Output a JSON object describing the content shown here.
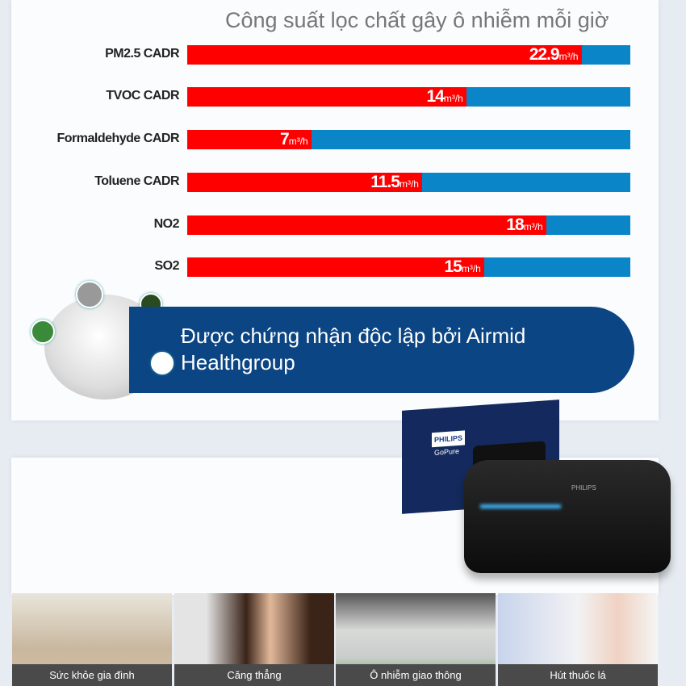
{
  "chart_data": {
    "type": "bar",
    "orientation": "horizontal",
    "title": "Công suất lọc chất gây ô nhiễm mỗi giờ",
    "unit": "m³/h",
    "categories": [
      "PM2.5 CADR",
      "TVOC CADR",
      "Formaldehyde CADR",
      "Toluene CADR",
      "NO2",
      "SO2"
    ],
    "values": [
      22.9,
      14,
      7,
      11.5,
      18,
      15
    ],
    "value_labels": [
      "22.9",
      "14",
      "7",
      "11.5",
      "18",
      "15"
    ],
    "fill_fraction": [
      0.89,
      0.63,
      0.28,
      0.53,
      0.81,
      0.67
    ],
    "colors": {
      "fill": "#ff0000",
      "track": "#0a85c8"
    }
  },
  "banner": {
    "line1": "Được chứng nhận độc lập bởi Airmid",
    "line2": "Healthgroup",
    "color": "#0b4583"
  },
  "product": {
    "brand_logo": "PHILIPS",
    "product_logo": "GoPure"
  },
  "tiles": [
    {
      "caption": "Sức khỏe gia đình"
    },
    {
      "caption": "Căng thẳng"
    },
    {
      "caption": "Ô nhiễm giao thông"
    },
    {
      "caption": "Hút thuốc lá"
    }
  ]
}
